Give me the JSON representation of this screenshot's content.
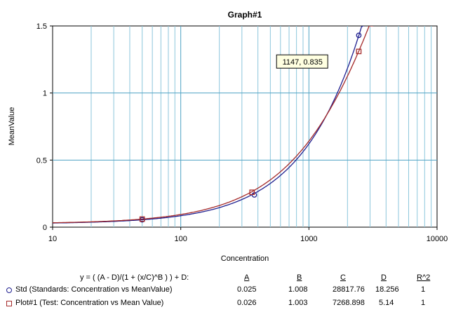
{
  "chart_data": {
    "type": "line",
    "title": "Graph#1",
    "xlabel": "Concentration",
    "ylabel": "MeanValue",
    "xscale": "log",
    "xlim": [
      10,
      10000
    ],
    "ylim": [
      0,
      1.5
    ],
    "x_tick_labels": [
      "10",
      "100",
      "1000",
      "10000"
    ],
    "x_tick_values": [
      10,
      100,
      1000,
      10000
    ],
    "y_tick_labels": [
      "0",
      "0.5",
      "1",
      "1.5"
    ],
    "y_tick_values": [
      0,
      0.5,
      1,
      1.5
    ],
    "grid": true,
    "tooltip": {
      "text": "1147, 0.835",
      "x": 1147,
      "y": 0.835
    },
    "equation": "y = ( (A - D)/(1 + (x/C)^B ) ) + D:",
    "param_headers": [
      "A",
      "B",
      "C",
      "D",
      "R^2"
    ],
    "series": [
      {
        "name": "Std (Standards: Concentration vs MeanValue)",
        "color": "#1f1f8f",
        "marker": "circle",
        "params": {
          "A": 0.025,
          "B": 1.008,
          "C": 28817.76,
          "D": 18.256
        },
        "points": [
          {
            "x": 50,
            "y": 0.055
          },
          {
            "x": 375,
            "y": 0.24
          },
          {
            "x": 2450,
            "y": 1.43
          }
        ],
        "table": [
          "0.025",
          "1.008",
          "28817.76",
          "18.256",
          "1"
        ]
      },
      {
        "name": "Plot#1 (Test: Concentration vs Mean Value)",
        "color": "#a52a2a",
        "marker": "square",
        "params": {
          "A": 0.026,
          "B": 1.003,
          "C": 7268.898,
          "D": 5.14
        },
        "points": [
          {
            "x": 50,
            "y": 0.06
          },
          {
            "x": 360,
            "y": 0.26
          },
          {
            "x": 2450,
            "y": 1.31
          }
        ],
        "table": [
          "0.026",
          "1.003",
          "7268.898",
          "5.14",
          "1"
        ]
      }
    ]
  }
}
